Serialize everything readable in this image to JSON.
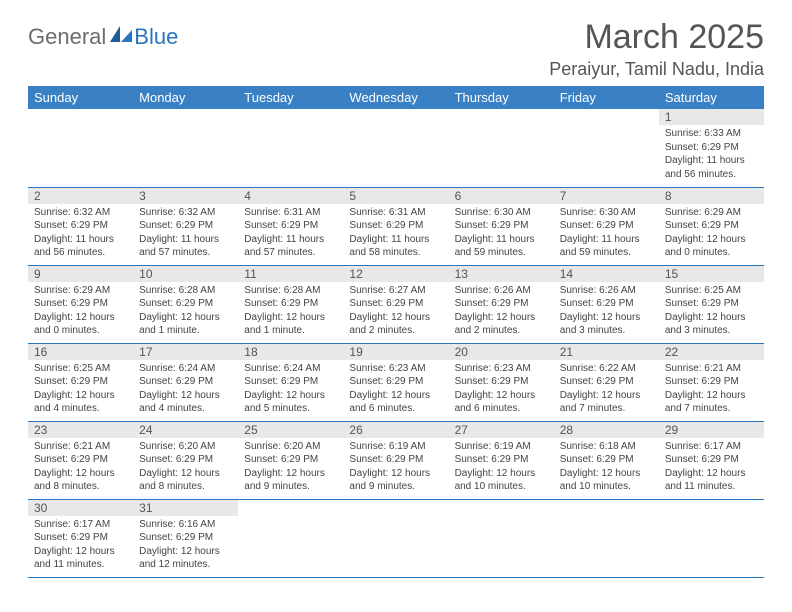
{
  "logo": {
    "word1": "General",
    "word2": "Blue"
  },
  "title": "March 2025",
  "location": "Peraiyur, Tamil Nadu, India",
  "headers": [
    "Sunday",
    "Monday",
    "Tuesday",
    "Wednesday",
    "Thursday",
    "Friday",
    "Saturday"
  ],
  "colors": {
    "header_bg": "#3a80c4",
    "header_text": "#ffffff",
    "daynum_bg": "#e8e8e8",
    "border": "#2a75bb",
    "logo_gray": "#6d6d6d",
    "logo_blue": "#2a75bb"
  },
  "weeks": [
    [
      null,
      null,
      null,
      null,
      null,
      null,
      {
        "n": "1",
        "sunrise": "Sunrise: 6:33 AM",
        "sunset": "Sunset: 6:29 PM",
        "daylight": "Daylight: 11 hours and 56 minutes."
      }
    ],
    [
      {
        "n": "2",
        "sunrise": "Sunrise: 6:32 AM",
        "sunset": "Sunset: 6:29 PM",
        "daylight": "Daylight: 11 hours and 56 minutes."
      },
      {
        "n": "3",
        "sunrise": "Sunrise: 6:32 AM",
        "sunset": "Sunset: 6:29 PM",
        "daylight": "Daylight: 11 hours and 57 minutes."
      },
      {
        "n": "4",
        "sunrise": "Sunrise: 6:31 AM",
        "sunset": "Sunset: 6:29 PM",
        "daylight": "Daylight: 11 hours and 57 minutes."
      },
      {
        "n": "5",
        "sunrise": "Sunrise: 6:31 AM",
        "sunset": "Sunset: 6:29 PM",
        "daylight": "Daylight: 11 hours and 58 minutes."
      },
      {
        "n": "6",
        "sunrise": "Sunrise: 6:30 AM",
        "sunset": "Sunset: 6:29 PM",
        "daylight": "Daylight: 11 hours and 59 minutes."
      },
      {
        "n": "7",
        "sunrise": "Sunrise: 6:30 AM",
        "sunset": "Sunset: 6:29 PM",
        "daylight": "Daylight: 11 hours and 59 minutes."
      },
      {
        "n": "8",
        "sunrise": "Sunrise: 6:29 AM",
        "sunset": "Sunset: 6:29 PM",
        "daylight": "Daylight: 12 hours and 0 minutes."
      }
    ],
    [
      {
        "n": "9",
        "sunrise": "Sunrise: 6:29 AM",
        "sunset": "Sunset: 6:29 PM",
        "daylight": "Daylight: 12 hours and 0 minutes."
      },
      {
        "n": "10",
        "sunrise": "Sunrise: 6:28 AM",
        "sunset": "Sunset: 6:29 PM",
        "daylight": "Daylight: 12 hours and 1 minute."
      },
      {
        "n": "11",
        "sunrise": "Sunrise: 6:28 AM",
        "sunset": "Sunset: 6:29 PM",
        "daylight": "Daylight: 12 hours and 1 minute."
      },
      {
        "n": "12",
        "sunrise": "Sunrise: 6:27 AM",
        "sunset": "Sunset: 6:29 PM",
        "daylight": "Daylight: 12 hours and 2 minutes."
      },
      {
        "n": "13",
        "sunrise": "Sunrise: 6:26 AM",
        "sunset": "Sunset: 6:29 PM",
        "daylight": "Daylight: 12 hours and 2 minutes."
      },
      {
        "n": "14",
        "sunrise": "Sunrise: 6:26 AM",
        "sunset": "Sunset: 6:29 PM",
        "daylight": "Daylight: 12 hours and 3 minutes."
      },
      {
        "n": "15",
        "sunrise": "Sunrise: 6:25 AM",
        "sunset": "Sunset: 6:29 PM",
        "daylight": "Daylight: 12 hours and 3 minutes."
      }
    ],
    [
      {
        "n": "16",
        "sunrise": "Sunrise: 6:25 AM",
        "sunset": "Sunset: 6:29 PM",
        "daylight": "Daylight: 12 hours and 4 minutes."
      },
      {
        "n": "17",
        "sunrise": "Sunrise: 6:24 AM",
        "sunset": "Sunset: 6:29 PM",
        "daylight": "Daylight: 12 hours and 4 minutes."
      },
      {
        "n": "18",
        "sunrise": "Sunrise: 6:24 AM",
        "sunset": "Sunset: 6:29 PM",
        "daylight": "Daylight: 12 hours and 5 minutes."
      },
      {
        "n": "19",
        "sunrise": "Sunrise: 6:23 AM",
        "sunset": "Sunset: 6:29 PM",
        "daylight": "Daylight: 12 hours and 6 minutes."
      },
      {
        "n": "20",
        "sunrise": "Sunrise: 6:23 AM",
        "sunset": "Sunset: 6:29 PM",
        "daylight": "Daylight: 12 hours and 6 minutes."
      },
      {
        "n": "21",
        "sunrise": "Sunrise: 6:22 AM",
        "sunset": "Sunset: 6:29 PM",
        "daylight": "Daylight: 12 hours and 7 minutes."
      },
      {
        "n": "22",
        "sunrise": "Sunrise: 6:21 AM",
        "sunset": "Sunset: 6:29 PM",
        "daylight": "Daylight: 12 hours and 7 minutes."
      }
    ],
    [
      {
        "n": "23",
        "sunrise": "Sunrise: 6:21 AM",
        "sunset": "Sunset: 6:29 PM",
        "daylight": "Daylight: 12 hours and 8 minutes."
      },
      {
        "n": "24",
        "sunrise": "Sunrise: 6:20 AM",
        "sunset": "Sunset: 6:29 PM",
        "daylight": "Daylight: 12 hours and 8 minutes."
      },
      {
        "n": "25",
        "sunrise": "Sunrise: 6:20 AM",
        "sunset": "Sunset: 6:29 PM",
        "daylight": "Daylight: 12 hours and 9 minutes."
      },
      {
        "n": "26",
        "sunrise": "Sunrise: 6:19 AM",
        "sunset": "Sunset: 6:29 PM",
        "daylight": "Daylight: 12 hours and 9 minutes."
      },
      {
        "n": "27",
        "sunrise": "Sunrise: 6:19 AM",
        "sunset": "Sunset: 6:29 PM",
        "daylight": "Daylight: 12 hours and 10 minutes."
      },
      {
        "n": "28",
        "sunrise": "Sunrise: 6:18 AM",
        "sunset": "Sunset: 6:29 PM",
        "daylight": "Daylight: 12 hours and 10 minutes."
      },
      {
        "n": "29",
        "sunrise": "Sunrise: 6:17 AM",
        "sunset": "Sunset: 6:29 PM",
        "daylight": "Daylight: 12 hours and 11 minutes."
      }
    ],
    [
      {
        "n": "30",
        "sunrise": "Sunrise: 6:17 AM",
        "sunset": "Sunset: 6:29 PM",
        "daylight": "Daylight: 12 hours and 11 minutes."
      },
      {
        "n": "31",
        "sunrise": "Sunrise: 6:16 AM",
        "sunset": "Sunset: 6:29 PM",
        "daylight": "Daylight: 12 hours and 12 minutes."
      },
      null,
      null,
      null,
      null,
      null
    ]
  ]
}
